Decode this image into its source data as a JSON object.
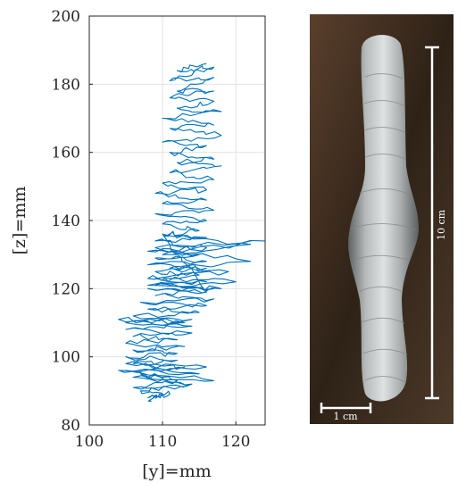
{
  "chart_data": {
    "type": "line",
    "xlabel": "[y]=mm",
    "ylabel": "[z]=mm",
    "xlim": [
      100,
      124
    ],
    "ylim": [
      80,
      200
    ],
    "xticks": [
      "100",
      "110",
      "120"
    ],
    "yticks": [
      "80",
      "100",
      "120",
      "140",
      "160",
      "180",
      "200"
    ],
    "grid": true,
    "series_color": "#0072BD",
    "x": [
      116,
      112,
      117,
      111,
      117,
      112,
      117,
      111,
      117,
      112,
      118,
      110,
      117,
      111,
      118,
      110,
      116,
      111,
      117,
      112,
      118,
      111,
      117,
      110,
      116,
      109,
      116,
      110,
      117,
      109,
      116,
      110,
      115,
      110,
      116,
      109,
      116,
      108,
      115,
      109,
      116,
      108,
      116,
      109,
      115,
      108,
      116,
      109,
      117,
      108,
      116,
      110,
      122,
      110,
      124,
      109,
      122,
      111,
      119,
      109,
      120,
      108,
      118,
      109,
      117,
      107,
      116,
      108,
      115,
      106,
      114,
      105,
      114,
      104,
      113,
      105,
      114,
      106,
      112,
      105,
      113,
      106,
      112,
      105,
      112,
      106,
      113,
      104,
      115,
      105,
      116,
      105,
      117,
      106,
      114,
      107,
      112,
      106,
      114,
      107,
      111,
      108,
      110,
      108
    ],
    "y": [
      186,
      184,
      185,
      181,
      182,
      178,
      178,
      176,
      175,
      173,
      172,
      170,
      168,
      167,
      165,
      163,
      162,
      160,
      158,
      157,
      156,
      154,
      152,
      151,
      149,
      148,
      146,
      145,
      143,
      142,
      140,
      139,
      137,
      136,
      135,
      134,
      132,
      131,
      130,
      129,
      128,
      127,
      126,
      125,
      124,
      123,
      122,
      121,
      120,
      120,
      119,
      136,
      133,
      130,
      134,
      132,
      128,
      126,
      125,
      123,
      122,
      121,
      120,
      118,
      117,
      116,
      115,
      114,
      113,
      112,
      111,
      110,
      109,
      111,
      110,
      108,
      107,
      106,
      105,
      104,
      103,
      102,
      101,
      100,
      99,
      98,
      97,
      96,
      95,
      98,
      97,
      96,
      93,
      94,
      92,
      95,
      93,
      91,
      92,
      90,
      89,
      88,
      89,
      87
    ]
  },
  "photo": {
    "scale_10cm": "10 cm",
    "scale_1cm": "1 cm",
    "colors": {
      "background": "#3c2a1c",
      "bead": "#b9bcbc",
      "bead_dark": "#6e7272"
    }
  }
}
